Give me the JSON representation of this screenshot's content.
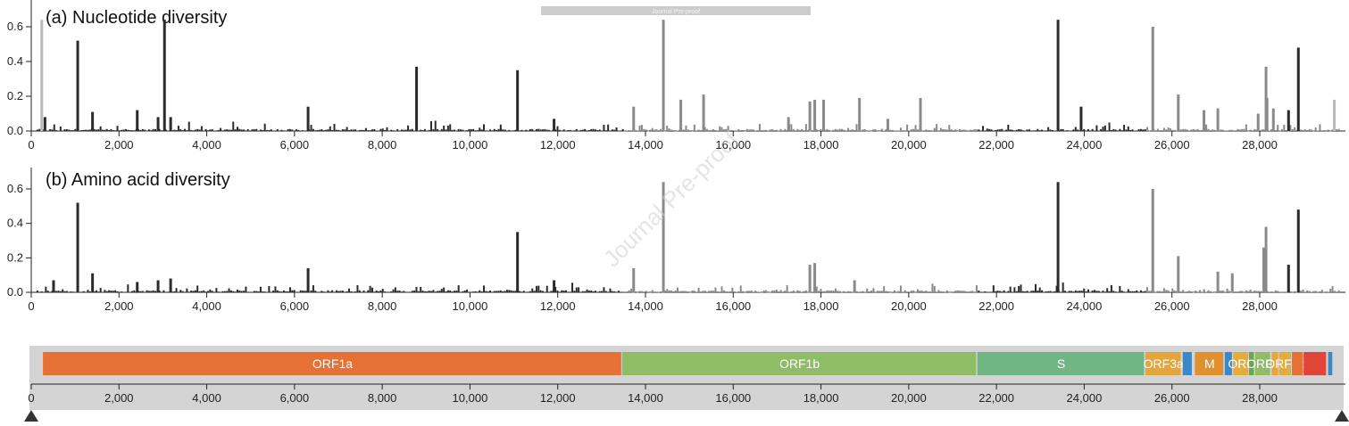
{
  "watermark": "Journal Pre-proof",
  "header_tag": "Journal Pre-proof",
  "colors": {
    "black_bar": "#2b2b2b",
    "gray_bar": "#8a8a8a",
    "light_bar": "#b9b9b9",
    "axis": "#222222",
    "genome_bg": "#d4d4d4"
  },
  "chart_data": [
    {
      "type": "bar",
      "title": "(a) Nucleotide diversity",
      "xlabel": "",
      "ylabel": "",
      "xlim": [
        0,
        29903
      ],
      "ylim": [
        0,
        0.7
      ],
      "x_ticks": [
        "0",
        "2,000",
        "4,000",
        "6,000",
        "8,000",
        "10,000",
        "12,000",
        "14,000",
        "16,000",
        "18,000",
        "20,000",
        "22,000",
        "24,000",
        "26,000",
        "28,000"
      ],
      "y_ticks": [
        "0.0",
        "0.2",
        "0.4",
        "0.6"
      ],
      "peaks": [
        {
          "x": 240,
          "y": 0.64,
          "tone": "light"
        },
        {
          "x": 1059,
          "y": 0.52,
          "tone": "dark"
        },
        {
          "x": 3037,
          "y": 0.64,
          "tone": "dark"
        },
        {
          "x": 8782,
          "y": 0.37,
          "tone": "dark"
        },
        {
          "x": 11083,
          "y": 0.35,
          "tone": "dark"
        },
        {
          "x": 14408,
          "y": 0.64,
          "tone": "mid"
        },
        {
          "x": 25563,
          "y": 0.6,
          "tone": "mid"
        },
        {
          "x": 23403,
          "y": 0.64,
          "tone": "dark"
        },
        {
          "x": 28144,
          "y": 0.37,
          "tone": "mid"
        },
        {
          "x": 28881,
          "y": 0.48,
          "tone": "dark"
        },
        {
          "x": 6310,
          "y": 0.14,
          "tone": "dark"
        },
        {
          "x": 2416,
          "y": 0.12,
          "tone": "dark"
        },
        {
          "x": 1397,
          "y": 0.11,
          "tone": "dark"
        },
        {
          "x": 13730,
          "y": 0.14,
          "tone": "mid"
        },
        {
          "x": 14805,
          "y": 0.18,
          "tone": "mid"
        },
        {
          "x": 15324,
          "y": 0.21,
          "tone": "mid"
        },
        {
          "x": 17747,
          "y": 0.17,
          "tone": "mid"
        },
        {
          "x": 17858,
          "y": 0.18,
          "tone": "mid"
        },
        {
          "x": 18060,
          "y": 0.18,
          "tone": "mid"
        },
        {
          "x": 18877,
          "y": 0.19,
          "tone": "mid"
        },
        {
          "x": 20268,
          "y": 0.19,
          "tone": "mid"
        },
        {
          "x": 23929,
          "y": 0.14,
          "tone": "dark"
        },
        {
          "x": 26144,
          "y": 0.21,
          "tone": "mid"
        },
        {
          "x": 26729,
          "y": 0.12,
          "tone": "mid"
        },
        {
          "x": 27046,
          "y": 0.13,
          "tone": "mid"
        },
        {
          "x": 28167,
          "y": 0.19,
          "tone": "mid"
        },
        {
          "x": 28311,
          "y": 0.13,
          "tone": "mid"
        },
        {
          "x": 28657,
          "y": 0.12,
          "tone": "dark"
        },
        {
          "x": 29700,
          "y": 0.18,
          "tone": "light"
        },
        {
          "x": 2891,
          "y": 0.08,
          "tone": "dark"
        },
        {
          "x": 3177,
          "y": 0.08,
          "tone": "dark"
        },
        {
          "x": 313,
          "y": 0.08,
          "tone": "dark"
        },
        {
          "x": 11916,
          "y": 0.07,
          "tone": "dark"
        },
        {
          "x": 17259,
          "y": 0.08,
          "tone": "mid"
        },
        {
          "x": 19524,
          "y": 0.07,
          "tone": "mid"
        },
        {
          "x": 27964,
          "y": 0.1,
          "tone": "mid"
        }
      ]
    },
    {
      "type": "bar",
      "title": "(b) Amino acid diversity",
      "xlabel": "",
      "ylabel": "",
      "xlim": [
        0,
        29903
      ],
      "ylim": [
        0,
        0.7
      ],
      "x_ticks": [
        "0",
        "2,000",
        "4,000",
        "6,000",
        "8,000",
        "10,000",
        "12,000",
        "14,000",
        "16,000",
        "18,000",
        "20,000",
        "22,000",
        "24,000",
        "26,000",
        "28,000"
      ],
      "y_ticks": [
        "0.0",
        "0.2",
        "0.4",
        "0.6"
      ],
      "peaks": [
        {
          "x": 1059,
          "y": 0.52,
          "tone": "dark"
        },
        {
          "x": 11083,
          "y": 0.35,
          "tone": "dark"
        },
        {
          "x": 14408,
          "y": 0.64,
          "tone": "mid"
        },
        {
          "x": 23403,
          "y": 0.64,
          "tone": "dark"
        },
        {
          "x": 25563,
          "y": 0.6,
          "tone": "mid"
        },
        {
          "x": 28881,
          "y": 0.48,
          "tone": "dark"
        },
        {
          "x": 28144,
          "y": 0.38,
          "tone": "mid"
        },
        {
          "x": 28092,
          "y": 0.26,
          "tone": "mid"
        },
        {
          "x": 6310,
          "y": 0.14,
          "tone": "dark"
        },
        {
          "x": 1397,
          "y": 0.11,
          "tone": "dark"
        },
        {
          "x": 13730,
          "y": 0.14,
          "tone": "mid"
        },
        {
          "x": 17747,
          "y": 0.16,
          "tone": "mid"
        },
        {
          "x": 17858,
          "y": 0.17,
          "tone": "mid"
        },
        {
          "x": 26144,
          "y": 0.21,
          "tone": "mid"
        },
        {
          "x": 27046,
          "y": 0.12,
          "tone": "mid"
        },
        {
          "x": 28657,
          "y": 0.16,
          "tone": "dark"
        },
        {
          "x": 2416,
          "y": 0.06,
          "tone": "dark"
        },
        {
          "x": 3177,
          "y": 0.08,
          "tone": "dark"
        },
        {
          "x": 2891,
          "y": 0.07,
          "tone": "dark"
        },
        {
          "x": 508,
          "y": 0.07,
          "tone": "dark"
        },
        {
          "x": 11916,
          "y": 0.07,
          "tone": "dark"
        },
        {
          "x": 18765,
          "y": 0.07,
          "tone": "mid"
        },
        {
          "x": 27375,
          "y": 0.11,
          "tone": "mid"
        }
      ]
    },
    {
      "type": "genome_map",
      "xlim": [
        0,
        29903
      ],
      "x_ticks": [
        "0",
        "2,000",
        "4,000",
        "6,000",
        "8,000",
        "10,000",
        "12,000",
        "14,000",
        "16,000",
        "18,000",
        "20,000",
        "22,000",
        "24,000",
        "26,000",
        "28,000"
      ],
      "genes": [
        {
          "name": "ORF1a",
          "start": 266,
          "end": 13468,
          "color": "#e77035"
        },
        {
          "name": "ORF1b",
          "start": 13468,
          "end": 21555,
          "color": "#8fbd66"
        },
        {
          "name": "S",
          "start": 21563,
          "end": 25384,
          "color": "#6fb683"
        },
        {
          "name": "ORF3a",
          "start": 25393,
          "end": 26220,
          "color": "#e4a53d"
        },
        {
          "name": "",
          "start": 26245,
          "end": 26472,
          "color": "#3a88c8"
        },
        {
          "name": "M",
          "start": 26523,
          "end": 27191,
          "color": "#e0902c"
        },
        {
          "name": "",
          "start": 27202,
          "end": 27387,
          "color": "#3a88c8"
        },
        {
          "name": "ORF",
          "start": 27394,
          "end": 27759,
          "color": "#e3ac3c"
        },
        {
          "name": "",
          "start": 27756,
          "end": 27887,
          "color": "#6aa84f"
        },
        {
          "name": "ORF8",
          "start": 27894,
          "end": 28259,
          "color": "#8fbd66"
        },
        {
          "name": "",
          "start": 28274,
          "end": 28440,
          "color": "#e4a53d"
        },
        {
          "name": "ORF9b",
          "start": 28440,
          "end": 28733,
          "color": "#e3ac3c"
        },
        {
          "name": "",
          "start": 28733,
          "end": 29000,
          "color": "#e77035"
        },
        {
          "name": "",
          "start": 29000,
          "end": 29533,
          "color": "#e0453a"
        },
        {
          "name": "",
          "start": 29558,
          "end": 29674,
          "color": "#3a88c8"
        }
      ]
    }
  ]
}
